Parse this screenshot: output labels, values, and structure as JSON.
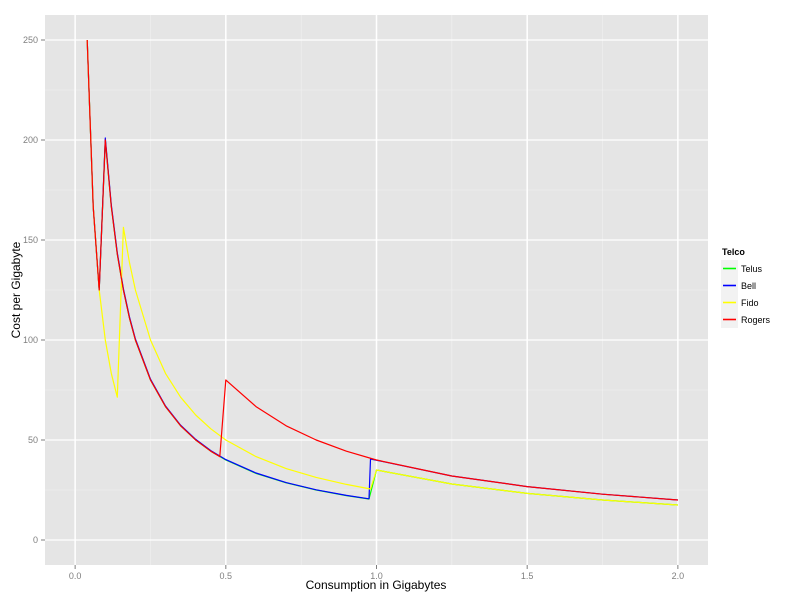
{
  "chart_data": {
    "type": "line",
    "title": "",
    "xlabel": "Consumption in Gigabytes",
    "ylabel": "Cost per Gigabyte",
    "xlim": [
      -0.1,
      2.1
    ],
    "ylim": [
      -12.5,
      262.5
    ],
    "x_ticks": [
      0.0,
      0.5,
      1.0,
      1.5,
      2.0
    ],
    "x_tick_labels": [
      "0.0",
      "0.5",
      "1.0",
      "1.5",
      "2.0"
    ],
    "y_ticks": [
      0,
      50,
      100,
      150,
      200,
      250
    ],
    "y_tick_labels": [
      "0",
      "50",
      "100",
      "150",
      "200",
      "250"
    ],
    "grid": true,
    "legend": {
      "title": "Telco",
      "placement": "right"
    },
    "series": [
      {
        "name": "Telus",
        "color": "#00ff00",
        "points": [
          [
            0.04,
            250
          ],
          [
            0.06,
            166.7
          ],
          [
            0.08,
            125
          ],
          [
            0.1,
            200
          ],
          [
            0.12,
            166.7
          ],
          [
            0.14,
            142.9
          ],
          [
            0.16,
            125
          ],
          [
            0.18,
            111.1
          ],
          [
            0.2,
            100
          ],
          [
            0.25,
            80
          ],
          [
            0.3,
            66.7
          ],
          [
            0.35,
            57.1
          ],
          [
            0.4,
            50
          ],
          [
            0.45,
            44.4
          ],
          [
            0.5,
            40
          ],
          [
            0.6,
            33.3
          ],
          [
            0.7,
            28.6
          ],
          [
            0.8,
            25
          ],
          [
            0.9,
            22.2
          ],
          [
            0.975,
            20.5
          ],
          [
            1.0,
            35
          ],
          [
            1.25,
            28
          ],
          [
            1.5,
            23.3
          ],
          [
            1.75,
            20
          ],
          [
            2.0,
            17.5
          ]
        ]
      },
      {
        "name": "Bell",
        "color": "#0000ff",
        "points": [
          [
            0.04,
            250
          ],
          [
            0.06,
            166.7
          ],
          [
            0.08,
            125
          ],
          [
            0.1,
            201
          ],
          [
            0.12,
            167.5
          ],
          [
            0.14,
            143.6
          ],
          [
            0.16,
            125.6
          ],
          [
            0.18,
            111.7
          ],
          [
            0.2,
            100.5
          ],
          [
            0.25,
            80.4
          ],
          [
            0.3,
            67
          ],
          [
            0.35,
            57.4
          ],
          [
            0.4,
            50.3
          ],
          [
            0.45,
            44.7
          ],
          [
            0.5,
            40.2
          ],
          [
            0.6,
            33.5
          ],
          [
            0.7,
            28.7
          ],
          [
            0.8,
            25.1
          ],
          [
            0.9,
            22.3
          ],
          [
            0.975,
            20.6
          ],
          [
            0.98,
            40.5
          ],
          [
            1.25,
            32
          ],
          [
            1.5,
            26.7
          ],
          [
            1.75,
            22.9
          ],
          [
            2.0,
            20
          ]
        ]
      },
      {
        "name": "Fido",
        "color": "#ffff00",
        "points": [
          [
            0.04,
            250
          ],
          [
            0.06,
            166.7
          ],
          [
            0.08,
            125
          ],
          [
            0.1,
            100
          ],
          [
            0.12,
            83.3
          ],
          [
            0.14,
            71.4
          ],
          [
            0.16,
            156.3
          ],
          [
            0.18,
            138.9
          ],
          [
            0.2,
            125
          ],
          [
            0.25,
            100
          ],
          [
            0.3,
            83.3
          ],
          [
            0.35,
            71.4
          ],
          [
            0.4,
            62.5
          ],
          [
            0.45,
            55.6
          ],
          [
            0.5,
            50
          ],
          [
            0.6,
            41.7
          ],
          [
            0.7,
            35.7
          ],
          [
            0.8,
            31.3
          ],
          [
            0.9,
            27.8
          ],
          [
            0.98,
            25.5
          ],
          [
            1.0,
            35
          ],
          [
            1.25,
            28
          ],
          [
            1.5,
            23.3
          ],
          [
            1.75,
            20
          ],
          [
            2.0,
            17.5
          ]
        ]
      },
      {
        "name": "Rogers",
        "color": "#ff0000",
        "points": [
          [
            0.04,
            250
          ],
          [
            0.06,
            166.7
          ],
          [
            0.08,
            125
          ],
          [
            0.1,
            200
          ],
          [
            0.12,
            166.7
          ],
          [
            0.14,
            142.9
          ],
          [
            0.16,
            125
          ],
          [
            0.18,
            111.1
          ],
          [
            0.2,
            100
          ],
          [
            0.25,
            80
          ],
          [
            0.3,
            66.7
          ],
          [
            0.35,
            57.1
          ],
          [
            0.4,
            50
          ],
          [
            0.45,
            44.4
          ],
          [
            0.48,
            41.7
          ],
          [
            0.5,
            80
          ],
          [
            0.6,
            66.7
          ],
          [
            0.7,
            57.1
          ],
          [
            0.8,
            50
          ],
          [
            0.9,
            44.4
          ],
          [
            1.0,
            40
          ],
          [
            1.25,
            32
          ],
          [
            1.5,
            26.7
          ],
          [
            1.75,
            22.9
          ],
          [
            2.0,
            20
          ]
        ]
      }
    ]
  }
}
